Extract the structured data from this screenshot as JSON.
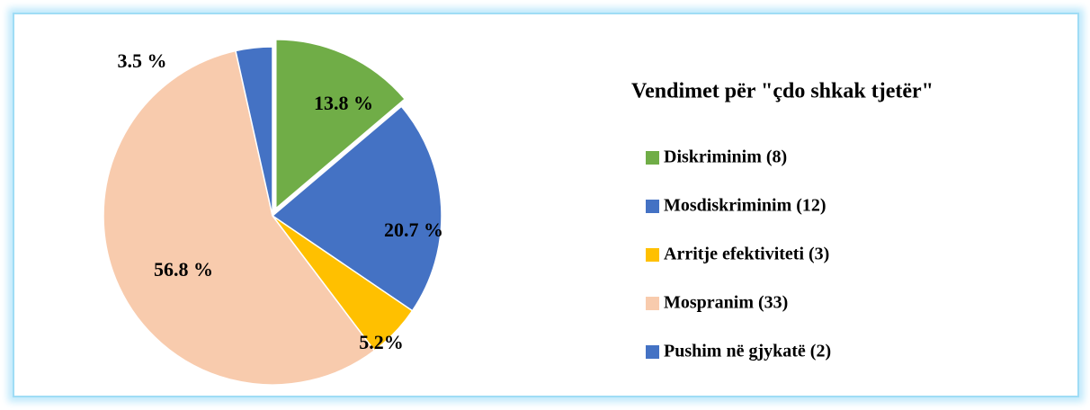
{
  "chart_data": {
    "type": "pie",
    "title": "Vendimet për \"çdo shkak tjetër\"",
    "categories": [
      "Diskriminim (8)",
      "Mosdiskriminim (12)",
      "Arritje efektiviteti (3)",
      "Mospranim (33)",
      "Pushim në gjykatë (2)"
    ],
    "values": [
      13.8,
      20.7,
      5.2,
      56.8,
      3.5
    ],
    "value_labels": [
      "13.8 %",
      "20.7 %",
      "5.2%",
      "56.8 %",
      "3.5 %"
    ],
    "colors": [
      "#70ad47",
      "#4472c4",
      "#ffc000",
      "#f8cbad",
      "#4472c4"
    ],
    "legend": "right"
  }
}
